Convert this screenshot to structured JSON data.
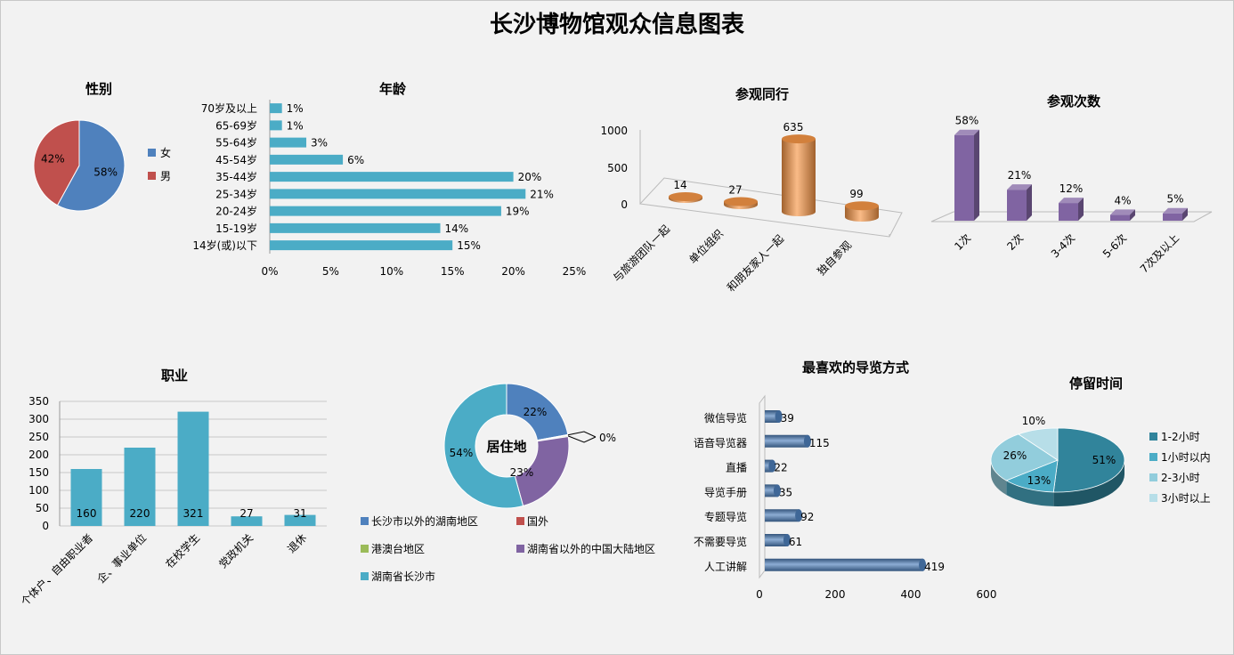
{
  "page": {
    "title": "长沙博物馆观众信息图表"
  },
  "colors": {
    "blue": "#4f81bd",
    "red": "#c0504d",
    "teal": "#4bacc6",
    "green": "#9bbb59",
    "purple": "#8064a2",
    "orange": "#f79646"
  },
  "chart_data": [
    {
      "id": "gender",
      "type": "pie",
      "title": "性别",
      "categories": [
        "女",
        "男"
      ],
      "values": [
        58,
        42
      ],
      "labels": [
        "58%",
        "42%"
      ],
      "colors": [
        "#4f81bd",
        "#c0504d"
      ],
      "legend": "right"
    },
    {
      "id": "age",
      "type": "bar",
      "orientation": "horizontal",
      "title": "年龄",
      "categories": [
        "70岁及以上",
        "65-69岁",
        "55-64岁",
        "45-54岁",
        "35-44岁",
        "25-34岁",
        "20-24岁",
        "15-19岁",
        "14岁(或)以下"
      ],
      "values": [
        1,
        1,
        3,
        6,
        20,
        21,
        19,
        14,
        15
      ],
      "labels": [
        "1%",
        "1%",
        "3%",
        "6%",
        "20%",
        "21%",
        "19%",
        "14%",
        "15%"
      ],
      "xlim": [
        0,
        25
      ],
      "xticks": [
        "0%",
        "5%",
        "10%",
        "15%",
        "20%",
        "25%"
      ],
      "color": "#4bacc6"
    },
    {
      "id": "companion",
      "type": "bar",
      "style": "3d-cylinder",
      "title": "参观同行",
      "categories": [
        "与旅游团队一起",
        "单位组织",
        "和朋友家人一起",
        "独自参观"
      ],
      "values": [
        14,
        27,
        635,
        99
      ],
      "labels": [
        "14",
        "27",
        "635",
        "99"
      ],
      "ylim": [
        0,
        1000
      ],
      "yticks": [
        "0",
        "500",
        "1000"
      ],
      "color": "#f79646"
    },
    {
      "id": "visits",
      "type": "bar",
      "style": "3d",
      "title": "参观次数",
      "categories": [
        "1次",
        "2次",
        "3-4次",
        "5-6次",
        "7次及以上"
      ],
      "values": [
        58,
        21,
        12,
        4,
        5
      ],
      "labels": [
        "58%",
        "21%",
        "12%",
        "4%",
        "5%"
      ],
      "color": "#8064a2"
    },
    {
      "id": "occupation",
      "type": "bar",
      "title": "职业",
      "categories": [
        "个体户、自由职业者",
        "企、事业单位",
        "在校学生",
        "党政机关",
        "退休"
      ],
      "values": [
        160,
        220,
        321,
        27,
        31
      ],
      "labels": [
        "160",
        "220",
        "321",
        "27",
        "31"
      ],
      "ylim": [
        0,
        350
      ],
      "yticks": [
        "0",
        "50",
        "100",
        "150",
        "200",
        "250",
        "300",
        "350"
      ],
      "color": "#4bacc6"
    },
    {
      "id": "residence",
      "type": "pie",
      "style": "doughnut",
      "title": "居住地",
      "categories": [
        "长沙市以外的湖南地区",
        "国外",
        "港澳台地区",
        "湖南省以外的中国大陆地区",
        "湖南省长沙市"
      ],
      "values": [
        22,
        0.2,
        0.3,
        23,
        54
      ],
      "labels": [
        "22%",
        "0%",
        "0%",
        "23%",
        "54%"
      ],
      "colors": [
        "#4f81bd",
        "#c0504d",
        "#9bbb59",
        "#8064a2",
        "#4bacc6"
      ],
      "legend": "bottom"
    },
    {
      "id": "guide",
      "type": "bar",
      "orientation": "horizontal",
      "style": "3d-cylinder",
      "title": "最喜欢的导览方式",
      "categories": [
        "微信导览",
        "语音导览器",
        "直播",
        "导览手册",
        "专题导览",
        "不需要导览",
        "人工讲解"
      ],
      "values": [
        39,
        115,
        22,
        35,
        92,
        61,
        419
      ],
      "labels": [
        "39",
        "115",
        "22",
        "35",
        "92",
        "61",
        "419"
      ],
      "xlim": [
        0,
        600
      ],
      "xticks": [
        "0",
        "200",
        "400",
        "600"
      ],
      "color": "#4f81bd"
    },
    {
      "id": "duration",
      "type": "pie",
      "style": "3d",
      "title": "停留时间",
      "categories": [
        "1-2小时",
        "1小时以内",
        "2-3小时",
        "3小时以上"
      ],
      "values": [
        51,
        13,
        26,
        10
      ],
      "labels": [
        "51%",
        "13%",
        "26%",
        "10%"
      ],
      "colors": [
        "#31849b",
        "#4bacc6",
        "#92cddc",
        "#b7dee8"
      ],
      "legend": "right"
    }
  ]
}
